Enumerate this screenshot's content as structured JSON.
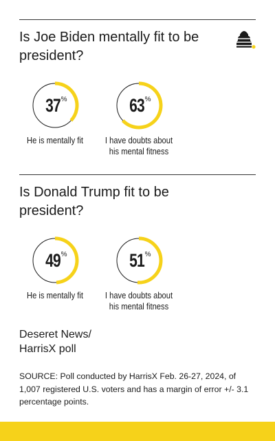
{
  "colors": {
    "accent": "#f6d21a",
    "ring": "#1a1a1a",
    "text": "#1a1a1a"
  },
  "logo_icon": "beehive-icon",
  "chart_data": [
    {
      "type": "pie",
      "title": "Is Joe Biden mentally fit to be president?",
      "categories": [
        "He is mentally fit",
        "I have doubts about his mental fitness"
      ],
      "values": [
        37,
        63
      ],
      "unit": "%"
    },
    {
      "type": "pie",
      "title": "Is Donald Trump fit to be president?",
      "categories": [
        "He is mentally fit",
        "I have doubts about his mental fitness"
      ],
      "values": [
        49,
        51
      ],
      "unit": "%"
    }
  ],
  "panels": [
    {
      "question": "Is Joe Biden mentally fit to be president?",
      "items": [
        {
          "value": "37",
          "pct": "%",
          "fraction": 0.37,
          "label": "He is mentally fit"
        },
        {
          "value": "63",
          "pct": "%",
          "fraction": 0.63,
          "label": "I have doubts about his mental fitness"
        }
      ]
    },
    {
      "question": "Is Donald Trump fit to be president?",
      "items": [
        {
          "value": "49",
          "pct": "%",
          "fraction": 0.49,
          "label": "He is mentally fit"
        },
        {
          "value": "51",
          "pct": "%",
          "fraction": 0.51,
          "label": "I have doubts about his mental fitness"
        }
      ]
    }
  ],
  "credit": "Deseret News/ HarrisX poll",
  "source": "SOURCE: Poll conducted by HarrisX Feb. 26-27, 2024, of 1,007 registered U.S. voters and has a margin of error +/- 3.1 percentage points."
}
